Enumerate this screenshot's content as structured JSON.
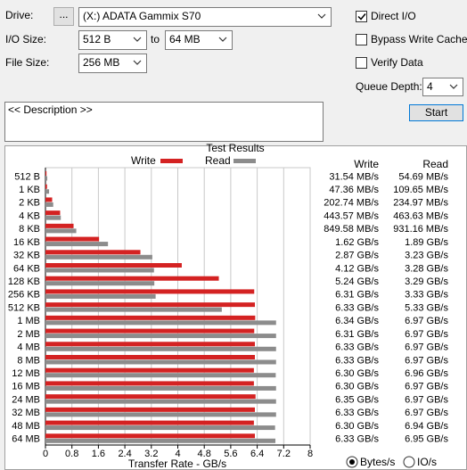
{
  "controls": {
    "drive_label": "Drive:",
    "browse": "...",
    "drive": "(X:) ADATA Gammix S70",
    "io_size_label": "I/O Size:",
    "io_from": "512 B",
    "to": "to",
    "io_to": "64 MB",
    "file_size_label": "File Size:",
    "file_size": "256 MB",
    "checkboxes": [
      {
        "label": "Direct I/O",
        "checked": true
      },
      {
        "label": "Bypass Write Cache",
        "checked": false
      },
      {
        "label": "Verify Data",
        "checked": false
      }
    ],
    "queue_depth_label": "Queue Depth:",
    "queue_depth": 4,
    "start": "Start",
    "description": "<< Description >>",
    "units": [
      {
        "label": "Bytes/s",
        "selected": true
      },
      {
        "label": "IO/s",
        "selected": false
      }
    ]
  },
  "chart_data": {
    "type": "bar",
    "orientation": "horizontal",
    "title": "Test Results",
    "xlabel": "Transfer Rate - GB/s",
    "categories": [
      "512 B",
      "1 KB",
      "2 KB",
      "4 KB",
      "8 KB",
      "16 KB",
      "32 KB",
      "64 KB",
      "128 KB",
      "256 KB",
      "512 KB",
      "1 MB",
      "2 MB",
      "4 MB",
      "8 MB",
      "12 MB",
      "16 MB",
      "24 MB",
      "32 MB",
      "48 MB",
      "64 MB"
    ],
    "series": [
      {
        "name": "Write",
        "color": "#d42222",
        "values": [
          0.03154,
          0.04736,
          0.20274,
          0.44357,
          0.84958,
          1.62,
          2.87,
          4.12,
          5.24,
          6.31,
          6.33,
          6.34,
          6.31,
          6.33,
          6.33,
          6.3,
          6.3,
          6.35,
          6.33,
          6.3,
          6.33
        ],
        "value_labels": [
          "31.54 MB/s",
          "47.36 MB/s",
          "202.74 MB/s",
          "443.57 MB/s",
          "849.58 MB/s",
          "1.62 GB/s",
          "2.87 GB/s",
          "4.12 GB/s",
          "5.24 GB/s",
          "6.31 GB/s",
          "6.33 GB/s",
          "6.34 GB/s",
          "6.31 GB/s",
          "6.33 GB/s",
          "6.33 GB/s",
          "6.30 GB/s",
          "6.30 GB/s",
          "6.35 GB/s",
          "6.33 GB/s",
          "6.30 GB/s",
          "6.33 GB/s"
        ]
      },
      {
        "name": "Read",
        "color": "#8c8c8c",
        "values": [
          0.05469,
          0.10965,
          0.23497,
          0.46363,
          0.93116,
          1.89,
          3.23,
          3.28,
          3.29,
          3.33,
          5.33,
          6.97,
          6.97,
          6.97,
          6.97,
          6.96,
          6.97,
          6.97,
          6.97,
          6.94,
          6.95
        ],
        "value_labels": [
          "54.69 MB/s",
          "109.65 MB/s",
          "234.97 MB/s",
          "463.63 MB/s",
          "931.16 MB/s",
          "1.89 GB/s",
          "3.23 GB/s",
          "3.28 GB/s",
          "3.29 GB/s",
          "3.33 GB/s",
          "5.33 GB/s",
          "6.97 GB/s",
          "6.97 GB/s",
          "6.97 GB/s",
          "6.97 GB/s",
          "6.96 GB/s",
          "6.97 GB/s",
          "6.97 GB/s",
          "6.97 GB/s",
          "6.94 GB/s",
          "6.95 GB/s"
        ]
      }
    ],
    "xlim": [
      0,
      8
    ],
    "xticks": [
      0,
      0.8,
      1.6,
      2.4,
      3.2,
      4,
      4.8,
      5.6,
      6.4,
      7.2,
      8
    ],
    "grid": true
  }
}
